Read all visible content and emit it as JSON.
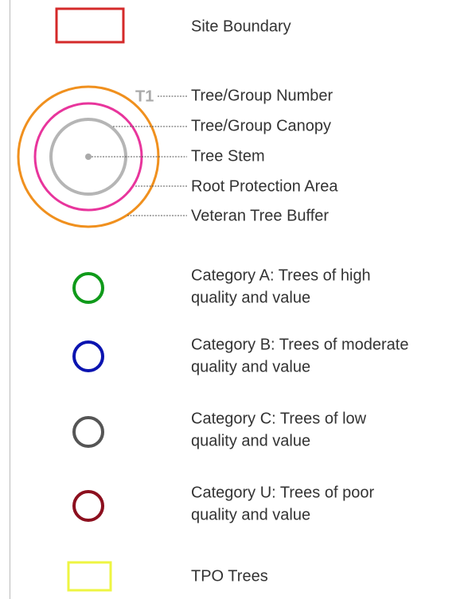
{
  "site_boundary": "Site Boundary",
  "tree_key": {
    "number_tag": "T1",
    "labels": [
      "Tree/Group Number",
      "Tree/Group Canopy",
      "Tree Stem",
      "Root Protection Area",
      "Veteran Tree Buffer"
    ]
  },
  "categories": [
    {
      "lines": [
        "Category A: Trees of high",
        "quality and value"
      ]
    },
    {
      "lines": [
        "Category B: Trees of moderate",
        "quality and value"
      ]
    },
    {
      "lines": [
        "Category C: Trees of low",
        "quality and value"
      ]
    },
    {
      "lines": [
        "Category U: Trees of poor",
        "quality and value"
      ]
    }
  ],
  "tpo": "TPO Trees"
}
